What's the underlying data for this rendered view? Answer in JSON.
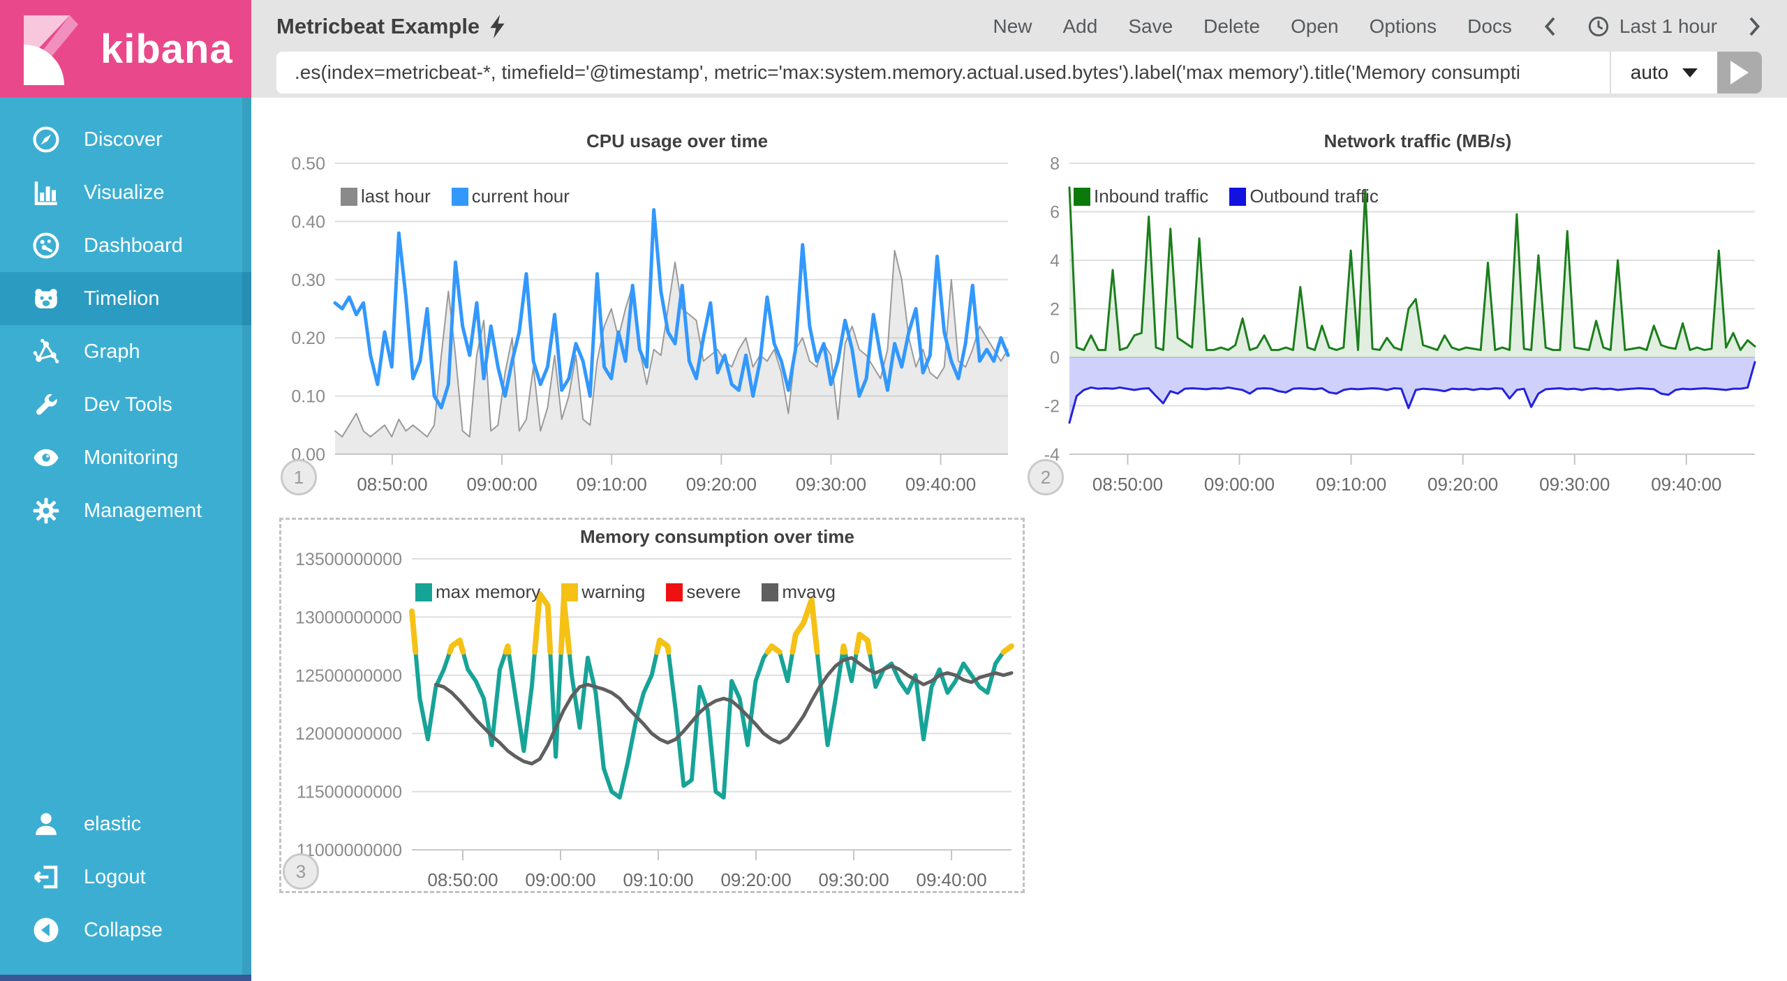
{
  "app": {
    "logo_text": "kibana"
  },
  "colors": {
    "sidebar": "#3CAED2",
    "sidebar_active": "#2B9BC2",
    "logo_pink": "#E9498B",
    "header_gray": "#E4E4E4",
    "cpu_current_blue": "#3298FD",
    "cpu_last_gray": "#9A9A9A",
    "inbound_green": "#1B7E1B",
    "outbound_blue": "#2222DD",
    "memory_teal": "#17A398",
    "warning_yellow": "#F5C115",
    "severe_red": "#EE1111",
    "mvavg_gray": "#5F5F5F"
  },
  "sidebar": {
    "items": [
      {
        "label": "Discover",
        "icon": "compass",
        "active": false
      },
      {
        "label": "Visualize",
        "icon": "barchart",
        "active": false
      },
      {
        "label": "Dashboard",
        "icon": "gauge",
        "active": false
      },
      {
        "label": "Timelion",
        "icon": "timelion",
        "active": true
      },
      {
        "label": "Graph",
        "icon": "graph",
        "active": false
      },
      {
        "label": "Dev Tools",
        "icon": "wrench",
        "active": false
      },
      {
        "label": "Monitoring",
        "icon": "eye",
        "active": false
      },
      {
        "label": "Management",
        "icon": "gear",
        "active": false
      }
    ],
    "footer_items": [
      {
        "label": "elastic",
        "icon": "user"
      },
      {
        "label": "Logout",
        "icon": "logout"
      },
      {
        "label": "Collapse",
        "icon": "collapse"
      }
    ]
  },
  "header": {
    "title": "Metricbeat Example",
    "menu": [
      "New",
      "Add",
      "Save",
      "Delete",
      "Open",
      "Options",
      "Docs"
    ],
    "time_picker": {
      "label": "Last 1 hour"
    }
  },
  "query": {
    "value": ".es(index=metricbeat-*, timefield='@timestamp', metric='max:system.memory.actual.used.bytes').label('max memory').title('Memory consumpti",
    "interval_label": "auto"
  },
  "chart_data": [
    {
      "type": "line",
      "title": "CPU usage over time",
      "badge": "1",
      "ylim": [
        0,
        0.5
      ],
      "yticks": [
        {
          "v": 0.5,
          "label": "0.50"
        },
        {
          "v": 0.4,
          "label": "0.40"
        },
        {
          "v": 0.3,
          "label": "0.30"
        },
        {
          "v": 0.2,
          "label": "0.20"
        },
        {
          "v": 0.1,
          "label": "0.10"
        },
        {
          "v": 0,
          "label": "0.00"
        }
      ],
      "xticks": {
        "labels": [
          "08:50:00",
          "09:00:00",
          "09:10:00",
          "09:20:00",
          "09:30:00",
          "09:40:00"
        ],
        "fractions": [
          0.085,
          0.248,
          0.411,
          0.574,
          0.737,
          0.9
        ]
      },
      "series": [
        {
          "name": "last hour",
          "type": "area",
          "color": "#9A9A9A",
          "legend_color": "#8A8A8A",
          "fill": "rgba(180,180,180,0.28)",
          "line_width": 2,
          "baseline": 0,
          "values": [
            0.04,
            0.03,
            0.05,
            0.07,
            0.04,
            0.03,
            0.04,
            0.05,
            0.03,
            0.06,
            0.04,
            0.05,
            0.04,
            0.03,
            0.05,
            0.17,
            0.28,
            0.17,
            0.04,
            0.03,
            0.17,
            0.23,
            0.04,
            0.05,
            0.14,
            0.2,
            0.04,
            0.06,
            0.15,
            0.04,
            0.08,
            0.17,
            0.06,
            0.1,
            0.17,
            0.06,
            0.05,
            0.16,
            0.22,
            0.25,
            0.2,
            0.25,
            0.29,
            0.18,
            0.12,
            0.18,
            0.17,
            0.25,
            0.33,
            0.25,
            0.24,
            0.23,
            0.16,
            0.17,
            0.18,
            0.16,
            0.15,
            0.18,
            0.2,
            0.15,
            0.17,
            0.16,
            0.18,
            0.14,
            0.07,
            0.18,
            0.2,
            0.16,
            0.15,
            0.19,
            0.17,
            0.06,
            0.19,
            0.22,
            0.18,
            0.17,
            0.15,
            0.13,
            0.18,
            0.35,
            0.3,
            0.2,
            0.15,
            0.18,
            0.14,
            0.13,
            0.15,
            0.3,
            0.16,
            0.15,
            0.18,
            0.22,
            0.2,
            0.18,
            0.16,
            0.18
          ]
        },
        {
          "name": "current hour",
          "type": "line",
          "color": "#3298FD",
          "line_width": 5,
          "values": [
            0.26,
            0.25,
            0.27,
            0.24,
            0.26,
            0.17,
            0.12,
            0.21,
            0.15,
            0.38,
            0.27,
            0.13,
            0.16,
            0.25,
            0.1,
            0.08,
            0.12,
            0.33,
            0.22,
            0.17,
            0.26,
            0.13,
            0.22,
            0.15,
            0.1,
            0.16,
            0.21,
            0.31,
            0.16,
            0.12,
            0.15,
            0.24,
            0.11,
            0.13,
            0.19,
            0.16,
            0.1,
            0.31,
            0.15,
            0.13,
            0.21,
            0.16,
            0.29,
            0.18,
            0.15,
            0.42,
            0.28,
            0.21,
            0.19,
            0.29,
            0.16,
            0.13,
            0.2,
            0.26,
            0.14,
            0.17,
            0.12,
            0.11,
            0.17,
            0.1,
            0.16,
            0.27,
            0.19,
            0.16,
            0.11,
            0.18,
            0.36,
            0.22,
            0.16,
            0.19,
            0.12,
            0.16,
            0.23,
            0.18,
            0.1,
            0.13,
            0.24,
            0.17,
            0.11,
            0.19,
            0.15,
            0.21,
            0.25,
            0.14,
            0.17,
            0.34,
            0.21,
            0.16,
            0.13,
            0.19,
            0.29,
            0.16,
            0.18,
            0.16,
            0.2,
            0.17
          ]
        }
      ]
    },
    {
      "type": "line",
      "title": "Network traffic (MB/s)",
      "badge": "2",
      "ylim": [
        -4,
        8
      ],
      "yticks": [
        {
          "v": 8,
          "label": "8"
        },
        {
          "v": 6,
          "label": "6"
        },
        {
          "v": 4,
          "label": "4"
        },
        {
          "v": 2,
          "label": "2"
        },
        {
          "v": 0,
          "label": "0"
        },
        {
          "v": -2,
          "label": "-2"
        },
        {
          "v": -4,
          "label": "-4"
        }
      ],
      "xticks": {
        "labels": [
          "08:50:00",
          "09:00:00",
          "09:10:00",
          "09:20:00",
          "09:30:00",
          "09:40:00"
        ],
        "fractions": [
          0.085,
          0.248,
          0.411,
          0.574,
          0.737,
          0.9
        ]
      },
      "series": [
        {
          "name": "Inbound traffic",
          "type": "area",
          "color": "#1B7E1B",
          "legend_color": "#0B7A0B",
          "fill": "rgba(27,126,27,0.13)",
          "line_width": 3,
          "baseline": 0,
          "values": [
            7.0,
            0.4,
            0.3,
            0.9,
            0.3,
            0.3,
            3.6,
            0.3,
            0.4,
            0.9,
            1.0,
            5.8,
            0.4,
            0.3,
            5.3,
            0.8,
            0.6,
            0.4,
            4.9,
            0.3,
            0.3,
            0.4,
            0.3,
            0.5,
            1.6,
            0.3,
            0.4,
            0.9,
            0.3,
            0.3,
            0.4,
            0.3,
            2.9,
            0.4,
            0.3,
            1.3,
            0.4,
            0.3,
            0.4,
            4.4,
            0.3,
            6.9,
            0.35,
            0.3,
            0.8,
            0.4,
            0.3,
            2.0,
            2.4,
            0.5,
            0.4,
            0.3,
            0.9,
            0.4,
            0.3,
            0.4,
            0.35,
            0.3,
            3.9,
            0.3,
            0.4,
            0.3,
            5.9,
            0.35,
            0.3,
            4.2,
            0.4,
            0.3,
            0.3,
            5.2,
            0.4,
            0.35,
            0.3,
            1.5,
            0.4,
            0.3,
            4.0,
            0.3,
            0.35,
            0.4,
            0.3,
            1.3,
            0.5,
            0.4,
            0.35,
            1.4,
            0.3,
            0.4,
            0.3,
            0.35,
            4.4,
            0.4,
            1.0,
            0.3,
            0.7,
            0.45
          ]
        },
        {
          "name": "Outbound traffic",
          "type": "area",
          "color": "#2222DD",
          "legend_color": "#1111E0",
          "fill": "rgba(100,100,245,0.30)",
          "line_width": 3,
          "baseline": 0,
          "values": [
            -2.7,
            -1.6,
            -1.35,
            -1.25,
            -1.3,
            -1.28,
            -1.3,
            -1.25,
            -1.3,
            -1.35,
            -1.3,
            -1.28,
            -1.6,
            -1.9,
            -1.4,
            -1.5,
            -1.3,
            -1.28,
            -1.3,
            -1.32,
            -1.28,
            -1.3,
            -1.25,
            -1.3,
            -1.35,
            -1.5,
            -1.3,
            -1.28,
            -1.3,
            -1.4,
            -1.45,
            -1.3,
            -1.28,
            -1.3,
            -1.32,
            -1.28,
            -1.45,
            -1.5,
            -1.35,
            -1.3,
            -1.32,
            -1.3,
            -1.28,
            -1.3,
            -1.35,
            -1.28,
            -1.3,
            -2.1,
            -1.35,
            -1.3,
            -1.32,
            -1.35,
            -1.4,
            -1.3,
            -1.32,
            -1.3,
            -1.35,
            -1.3,
            -1.32,
            -1.28,
            -1.3,
            -1.7,
            -1.35,
            -1.3,
            -2.05,
            -1.5,
            -1.32,
            -1.3,
            -1.28,
            -1.32,
            -1.3,
            -1.35,
            -1.3,
            -1.28,
            -1.32,
            -1.3,
            -1.35,
            -1.32,
            -1.3,
            -1.28,
            -1.3,
            -1.32,
            -1.5,
            -1.55,
            -1.35,
            -1.3,
            -1.32,
            -1.3,
            -1.28,
            -1.3,
            -1.32,
            -1.35,
            -1.3,
            -1.3,
            -1.25,
            -0.2
          ]
        }
      ]
    },
    {
      "type": "line",
      "title": "Memory consumption over time",
      "badge": "3",
      "selected": true,
      "unit_multiplier": 1000000000,
      "ylim": [
        11,
        13.5
      ],
      "yticks": [
        {
          "v": 13.5,
          "label": "13500000000"
        },
        {
          "v": 13,
          "label": "13000000000"
        },
        {
          "v": 12.5,
          "label": "12500000000"
        },
        {
          "v": 12,
          "label": "12000000000"
        },
        {
          "v": 11.5,
          "label": "11500000000"
        },
        {
          "v": 11,
          "label": "11000000000"
        }
      ],
      "xticks": {
        "labels": [
          "08:50:00",
          "09:00:00",
          "09:10:00",
          "09:20:00",
          "09:30:00",
          "09:40:00"
        ],
        "fractions": [
          0.085,
          0.248,
          0.411,
          0.574,
          0.737,
          0.9
        ]
      },
      "series": [
        {
          "name": "max memory",
          "type": "line",
          "color": "#17A398",
          "line_width": 6,
          "values": [
            13.05,
            12.3,
            11.95,
            12.4,
            12.55,
            12.75,
            12.8,
            12.55,
            12.45,
            12.3,
            11.9,
            12.55,
            12.75,
            12.3,
            11.85,
            12.4,
            13.2,
            13.1,
            11.8,
            13.15,
            12.5,
            12.05,
            12.65,
            12.35,
            11.7,
            11.5,
            11.45,
            11.75,
            12.1,
            12.35,
            12.5,
            12.8,
            12.75,
            12.2,
            11.55,
            11.6,
            12.4,
            12.2,
            11.5,
            11.45,
            12.45,
            12.3,
            11.9,
            12.45,
            12.65,
            12.75,
            12.7,
            12.45,
            12.85,
            12.95,
            13.15,
            12.5,
            11.9,
            12.3,
            12.75,
            12.45,
            12.85,
            12.8,
            12.4,
            12.55,
            12.6,
            12.45,
            12.35,
            12.5,
            11.95,
            12.4,
            12.55,
            12.35,
            12.45,
            12.6,
            12.5,
            12.4,
            12.35,
            12.6,
            12.7,
            12.75
          ]
        },
        {
          "name": "warning",
          "type": "overlay",
          "color": "#F5C115",
          "line_width": 8,
          "source": 0,
          "threshold": 12.7
        },
        {
          "name": "severe",
          "type": "overlay",
          "color": "#EE1111",
          "line_width": 8,
          "source": 0,
          "threshold": 13.4
        },
        {
          "name": "mvavg",
          "type": "line",
          "color": "#5F5F5F",
          "line_width": 5,
          "values": [
            null,
            null,
            null,
            12.42,
            12.4,
            12.35,
            12.28,
            12.2,
            12.12,
            12.05,
            11.98,
            11.92,
            11.85,
            11.8,
            11.76,
            11.74,
            11.78,
            11.9,
            12.05,
            12.2,
            12.32,
            12.4,
            12.42,
            12.4,
            12.38,
            12.35,
            12.3,
            12.22,
            12.15,
            12.08,
            12.0,
            11.95,
            11.92,
            11.95,
            12.02,
            12.1,
            12.18,
            12.24,
            12.28,
            12.3,
            12.28,
            12.22,
            12.15,
            12.08,
            12.0,
            11.95,
            11.92,
            11.96,
            12.05,
            12.15,
            12.28,
            12.4,
            12.5,
            12.58,
            12.63,
            12.65,
            12.6,
            12.55,
            12.52,
            12.55,
            12.58,
            12.55,
            12.5,
            12.46,
            12.42,
            12.45,
            12.5,
            12.52,
            12.5,
            12.46,
            12.44,
            12.48,
            12.5,
            12.52,
            12.5,
            12.52
          ]
        }
      ]
    }
  ]
}
